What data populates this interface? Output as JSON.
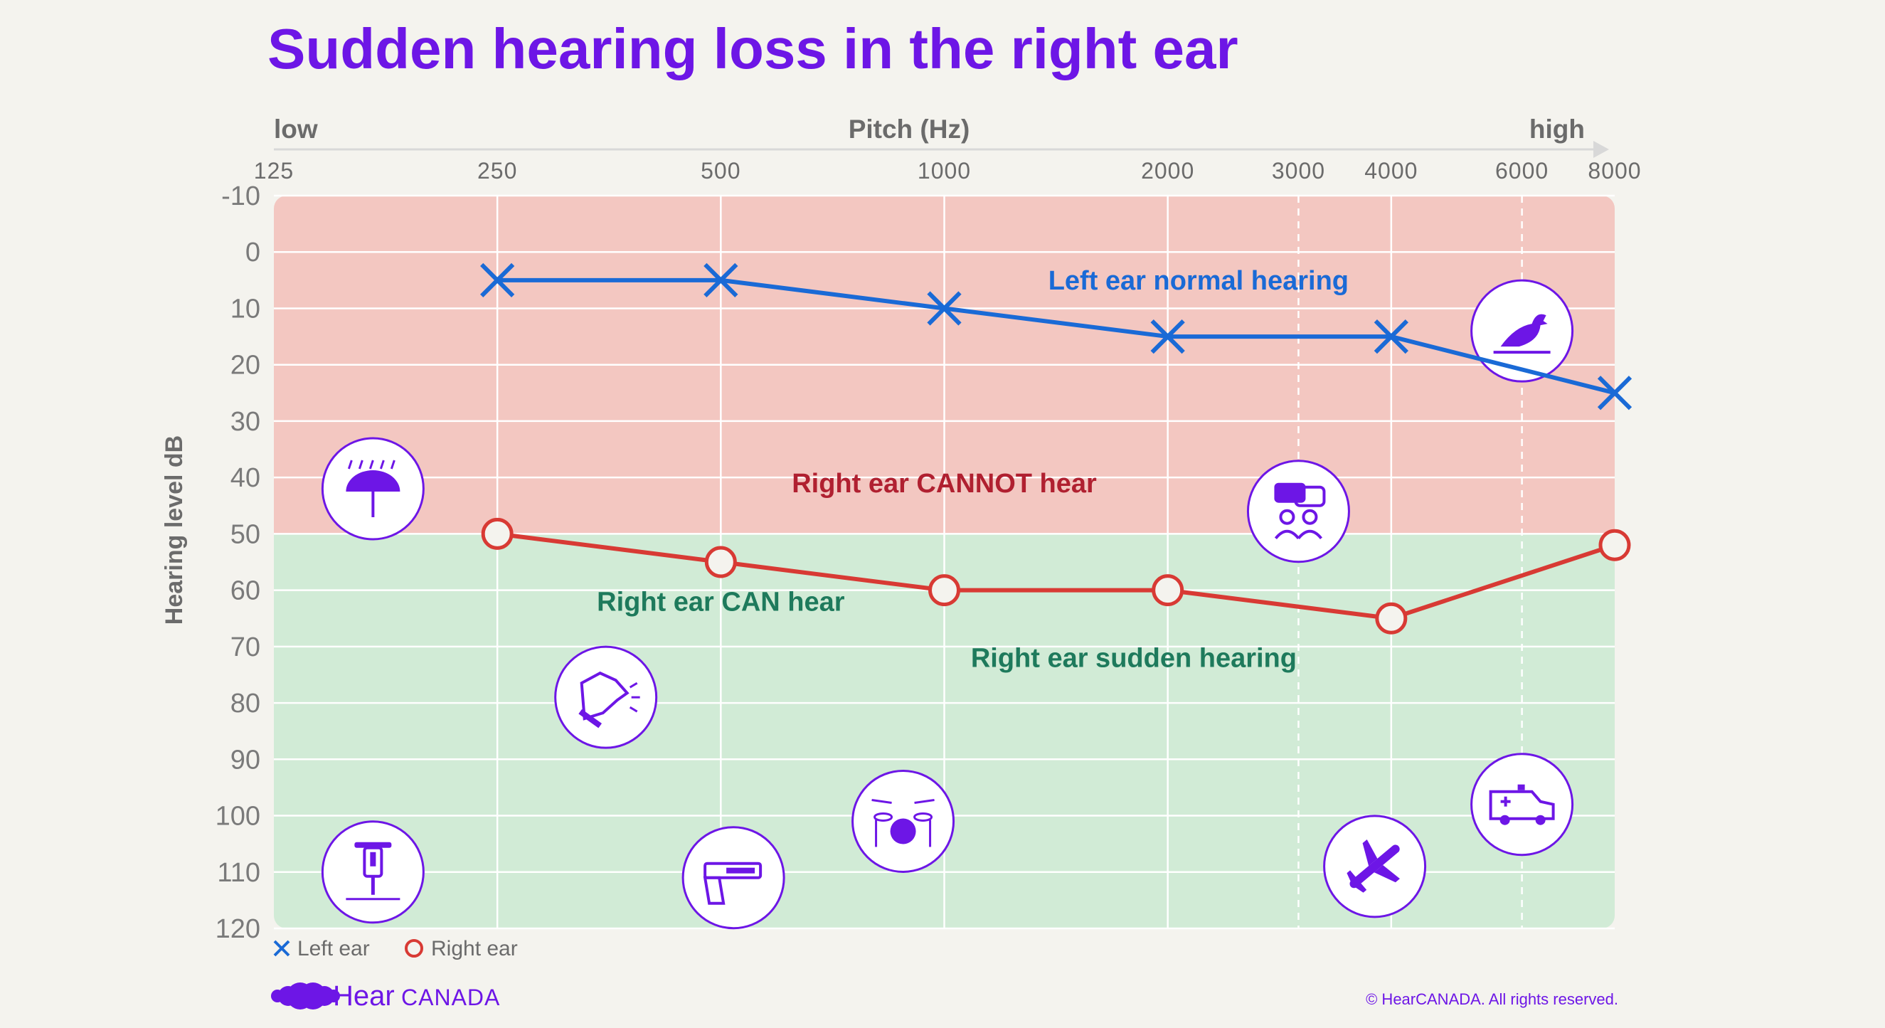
{
  "chart_data": {
    "type": "line",
    "title": "Sudden hearing loss in the right ear",
    "xlabel": "Pitch (Hz)",
    "x_low_label": "low",
    "x_high_label": "high",
    "ylabel": "Hearing level dB",
    "x_scale": "log",
    "x": [
      250,
      500,
      1000,
      2000,
      4000,
      8000
    ],
    "x_ticks": [
      125,
      250,
      500,
      1000,
      2000,
      3000,
      4000,
      6000,
      8000
    ],
    "y_ticks": [
      -10,
      0,
      10,
      20,
      30,
      40,
      50,
      60,
      70,
      80,
      90,
      100,
      110,
      120
    ],
    "ylim": [
      -10,
      120
    ],
    "y_inverted": true,
    "grid": true,
    "series": [
      {
        "name": "Left ear",
        "marker": "x",
        "color": "#1a6ad6",
        "x": [
          250,
          500,
          1000,
          2000,
          4000,
          8000
        ],
        "values": [
          5,
          5,
          10,
          15,
          15,
          25
        ]
      },
      {
        "name": "Right ear",
        "marker": "o",
        "color": "#d83a34",
        "x": [
          250,
          500,
          1000,
          2000,
          4000,
          8000
        ],
        "values": [
          50,
          55,
          60,
          60,
          65,
          52
        ]
      }
    ],
    "regions": [
      {
        "from": -10,
        "to": 50,
        "color": "#f3c7c1"
      },
      {
        "from": 50,
        "to": 120,
        "color": "#d1ebd6"
      }
    ],
    "annotations": [
      {
        "text": "Left ear normal hearing",
        "color": "#1a6ad6",
        "x": 2200,
        "y": 5
      },
      {
        "text": "Right ear CANNOT hear",
        "color": "#b02030",
        "x": 1000,
        "y": 41
      },
      {
        "text": "Right ear CAN hear",
        "color": "#1e7a5c",
        "x": 500,
        "y": 62
      },
      {
        "text": "Right ear sudden hearing",
        "color": "#1e7a5c",
        "x": 1800,
        "y": 72
      }
    ],
    "icons": [
      {
        "name": "bird-icon",
        "x": 6000,
        "y": 14
      },
      {
        "name": "rain-umbrella-icon",
        "x": 170,
        "y": 42
      },
      {
        "name": "conversation-icon",
        "x": 3000,
        "y": 46
      },
      {
        "name": "barking-dog-icon",
        "x": 350,
        "y": 79
      },
      {
        "name": "jackhammer-icon",
        "x": 170,
        "y": 110
      },
      {
        "name": "handgun-icon",
        "x": 520,
        "y": 111
      },
      {
        "name": "drum-kit-icon",
        "x": 880,
        "y": 101
      },
      {
        "name": "airplane-icon",
        "x": 3800,
        "y": 109
      },
      {
        "name": "ambulance-icon",
        "x": 6000,
        "y": 98
      }
    ],
    "legend_position": "bottom-left"
  },
  "footer": {
    "brand_name_1": "Hear",
    "brand_name_2": "CANADA",
    "copyright": "© HearCANADA. All rights reserved."
  },
  "colors": {
    "title": "#6d16e6",
    "icon": "#6d16e6",
    "axis_text": "#6b6b6b",
    "background": "#f4f3ee"
  }
}
